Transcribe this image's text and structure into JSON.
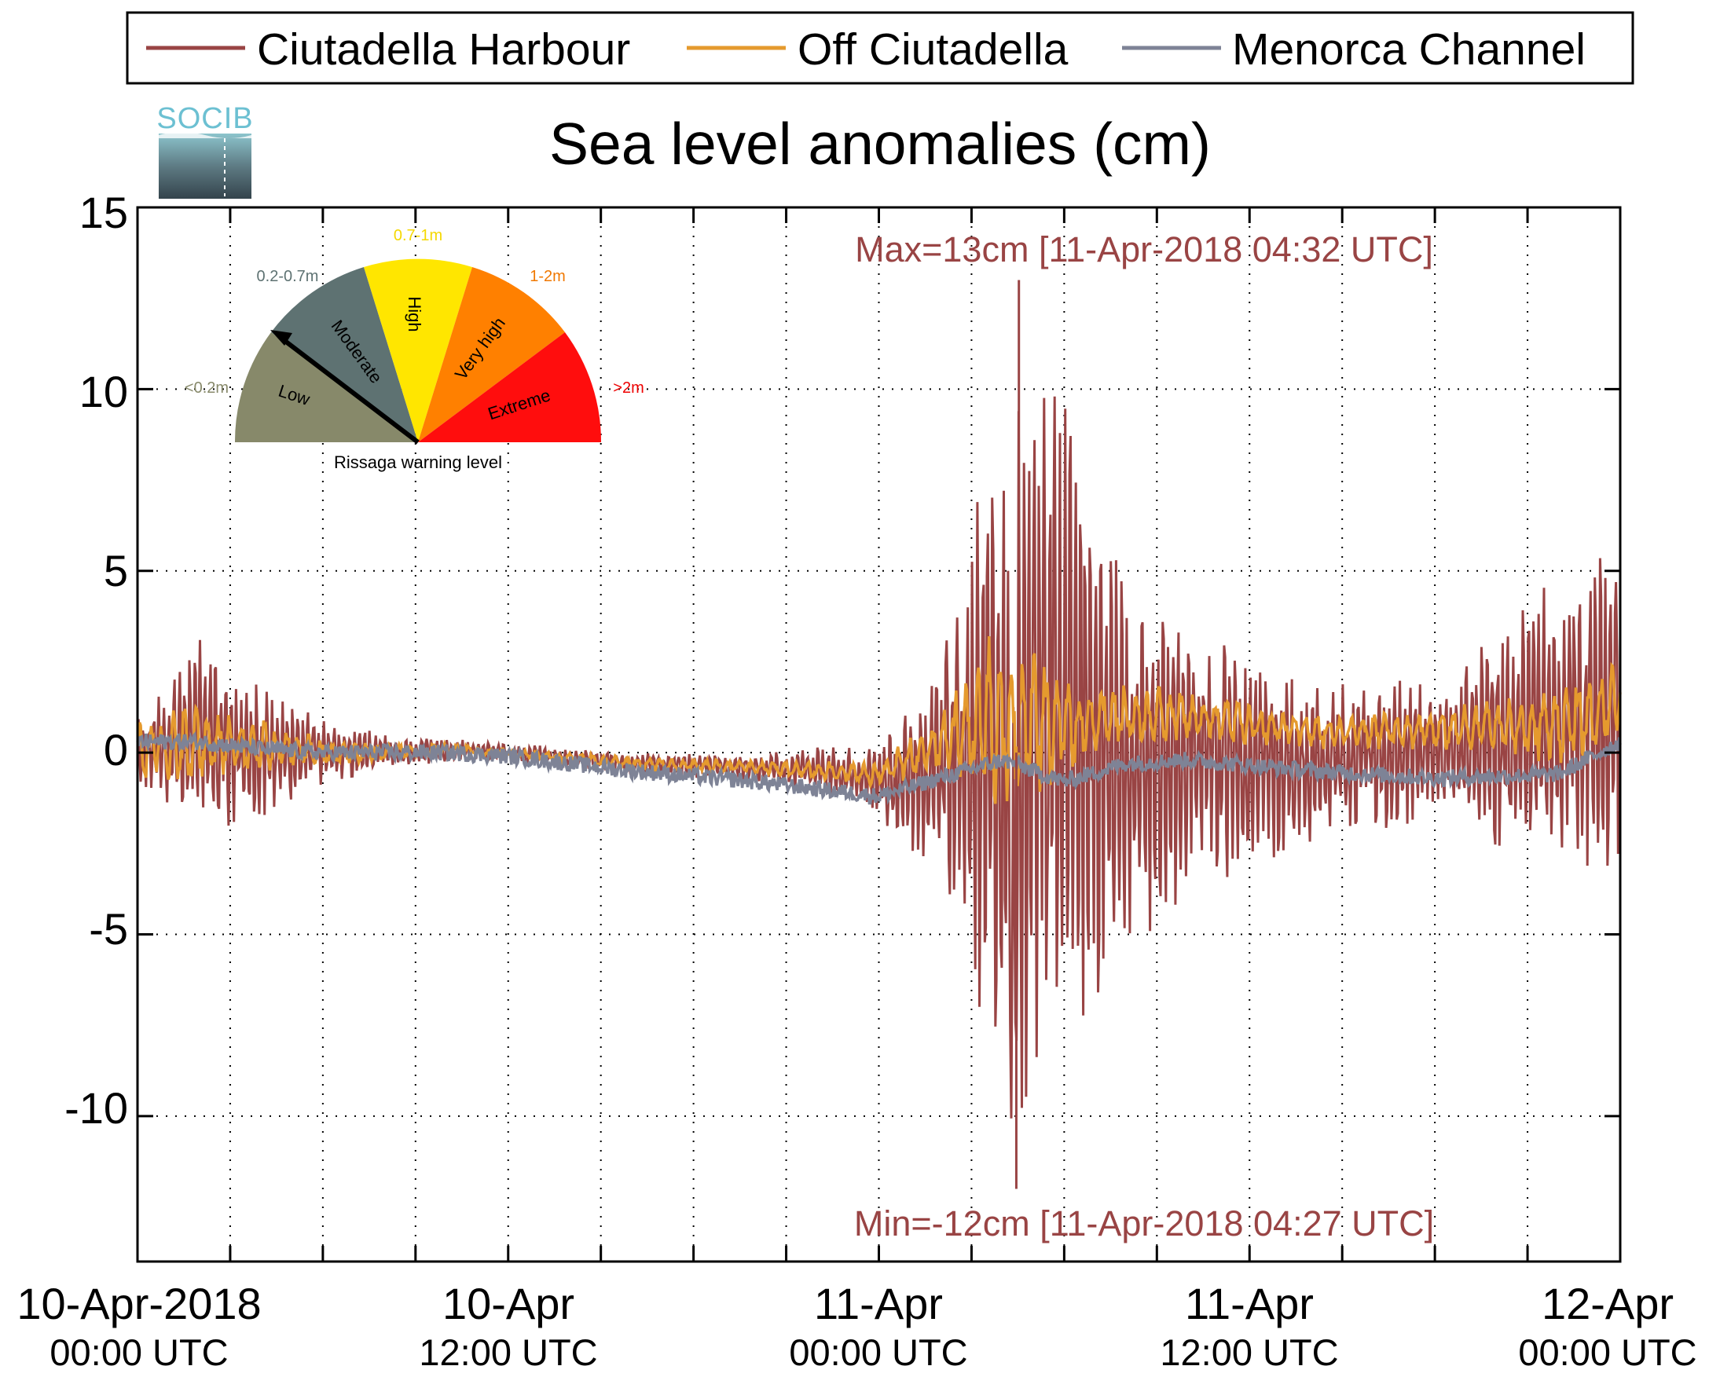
{
  "legend": {
    "items": [
      {
        "label": "Ciutadella Harbour",
        "color": "#994444"
      },
      {
        "label": "Off Ciutadella",
        "color": "#E59A2E"
      },
      {
        "label": "Menorca Channel",
        "color": "#7E8396"
      }
    ]
  },
  "logo": {
    "text": "SOCIB"
  },
  "gauge": {
    "title": "Rissaga warning level",
    "segments": [
      {
        "name": "Low",
        "range": "<0.2m",
        "color": "#87896A",
        "range_color": "#87896A"
      },
      {
        "name": "Moderate",
        "range": "0.2-0.7m",
        "color": "#5E7272",
        "range_color": "#5E7272"
      },
      {
        "name": "High",
        "range": "0.7-1m",
        "color": "#FFE600",
        "range_color": "#F5D800"
      },
      {
        "name": "Very high",
        "range": "1-2m",
        "color": "#FF8000",
        "range_color": "#F07800"
      },
      {
        "name": "Extreme",
        "range": ">2m",
        "color": "#FF0D0D",
        "range_color": "#EE0000"
      }
    ],
    "needle_level": "Moderate"
  },
  "annotations": {
    "max": "Max=13cm [11-Apr-2018 04:32 UTC]",
    "min": "Min=-12cm [11-Apr-2018 04:27 UTC]",
    "color": "#994444"
  },
  "x_axis": {
    "ticks": [
      {
        "line1": "10-Apr-2018",
        "line2": "00:00 UTC"
      },
      {
        "line1": "10-Apr",
        "line2": "12:00 UTC"
      },
      {
        "line1": "11-Apr",
        "line2": "00:00 UTC"
      },
      {
        "line1": "11-Apr",
        "line2": "12:00 UTC"
      },
      {
        "line1": "12-Apr",
        "line2": "00:00 UTC"
      }
    ]
  },
  "y_axis": {
    "ticks": [
      "15",
      "10",
      "5",
      "0",
      "-5",
      "-10"
    ]
  },
  "chart_data": {
    "type": "line",
    "title": "Sea level anomalies (cm)",
    "xlabel": "",
    "ylabel": "",
    "x_range": [
      "2018-04-10 00:00 UTC",
      "2018-04-12 00:00 UTC"
    ],
    "ylim": [
      -14,
      15
    ],
    "grid": true,
    "legend_position": "top",
    "series": [
      {
        "name": "Ciutadella Harbour",
        "color": "#994444",
        "x": [
          "2018-04-10 00:00",
          "2018-04-10 02:00",
          "2018-04-10 04:00",
          "2018-04-10 06:00",
          "2018-04-10 08:00",
          "2018-04-10 10:00",
          "2018-04-10 12:00",
          "2018-04-10 16:00",
          "2018-04-10 20:00",
          "2018-04-11 00:00",
          "2018-04-11 02:00",
          "2018-04-11 04:00",
          "2018-04-11 04:27",
          "2018-04-11 04:32",
          "2018-04-11 06:00",
          "2018-04-11 08:00",
          "2018-04-11 10:00",
          "2018-04-11 14:00",
          "2018-04-11 18:00",
          "2018-04-11 22:00",
          "2018-04-12 00:00"
        ],
        "envelope_max": [
          1.0,
          3.2,
          2.0,
          1.0,
          0.5,
          0.4,
          0.3,
          0.0,
          0.0,
          0.3,
          3.0,
          10.0,
          0.0,
          13.0,
          12.0,
          5.0,
          4.0,
          2.0,
          2.0,
          5.0,
          6.0
        ],
        "envelope_min": [
          -1.0,
          -2.5,
          -2.0,
          -1.0,
          -0.5,
          -0.3,
          -0.3,
          -0.6,
          -0.8,
          -1.8,
          -4.5,
          -10.0,
          -12.0,
          -11.0,
          -10.0,
          -5.5,
          -4.0,
          -2.5,
          -2.0,
          -3.5,
          -4.0
        ],
        "note": "high-frequency oscillation (rissaga) within the listed envelope"
      },
      {
        "name": "Off Ciutadella",
        "color": "#E59A2E",
        "x": [
          "2018-04-10 00:00",
          "2018-04-10 02:00",
          "2018-04-10 04:00",
          "2018-04-10 06:00",
          "2018-04-10 08:00",
          "2018-04-10 10:00",
          "2018-04-10 12:00",
          "2018-04-10 16:00",
          "2018-04-10 20:00",
          "2018-04-11 00:00",
          "2018-04-11 02:00",
          "2018-04-11 04:00",
          "2018-04-11 06:00",
          "2018-04-11 08:00",
          "2018-04-11 10:00",
          "2018-04-11 14:00",
          "2018-04-11 18:00",
          "2018-04-11 22:00",
          "2018-04-12 00:00"
        ],
        "values": [
          0.0,
          0.3,
          0.2,
          0.0,
          0.0,
          0.1,
          0.0,
          -0.3,
          -0.4,
          -0.6,
          0.3,
          1.0,
          0.7,
          1.0,
          1.0,
          0.6,
          0.6,
          0.8,
          1.5
        ],
        "envelope_max": [
          1.0,
          1.8,
          1.0,
          0.5,
          0.3,
          0.2,
          0.1,
          -0.1,
          -0.2,
          -0.2,
          1.2,
          3.0,
          2.0,
          1.8,
          1.6,
          1.2,
          1.1,
          2.0,
          2.5
        ],
        "envelope_min": [
          -1.0,
          -0.5,
          -0.5,
          -0.3,
          -0.2,
          -0.1,
          -0.1,
          -0.5,
          -0.6,
          -0.9,
          -0.5,
          -3.0,
          -0.8,
          0.0,
          0.2,
          0.2,
          0.0,
          -0.3,
          0.0
        ]
      },
      {
        "name": "Menorca Channel",
        "color": "#7E8396",
        "x": [
          "2018-04-10 00:00",
          "2018-04-10 02:00",
          "2018-04-10 04:00",
          "2018-04-10 06:00",
          "2018-04-10 08:00",
          "2018-04-10 10:00",
          "2018-04-10 12:00",
          "2018-04-10 16:00",
          "2018-04-10 20:00",
          "2018-04-11 00:00",
          "2018-04-11 02:00",
          "2018-04-11 04:00",
          "2018-04-11 06:00",
          "2018-04-11 08:00",
          "2018-04-11 10:00",
          "2018-04-11 14:00",
          "2018-04-11 18:00",
          "2018-04-11 22:00",
          "2018-04-12 00:00"
        ],
        "values": [
          0.3,
          0.3,
          0.1,
          0.0,
          0.0,
          0.0,
          -0.1,
          -0.5,
          -0.8,
          -1.2,
          -0.7,
          -0.2,
          -0.8,
          -0.3,
          -0.2,
          -0.5,
          -0.7,
          -0.6,
          0.3
        ]
      }
    ]
  }
}
